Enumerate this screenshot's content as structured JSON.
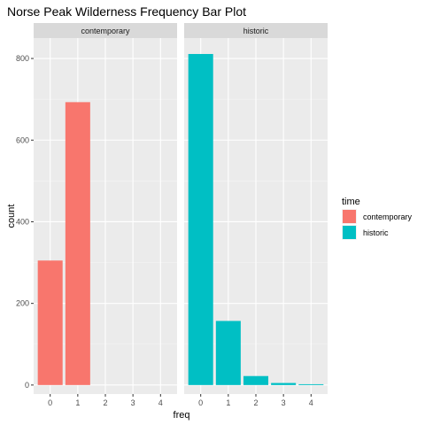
{
  "chart_data": {
    "type": "bar",
    "title": "Norse Peak Wilderness Frequency Bar Plot",
    "xlabel": "freq",
    "ylabel": "count",
    "x_ticks": [
      "0",
      "1",
      "2",
      "3",
      "4"
    ],
    "y_ticks": [
      0,
      200,
      400,
      600,
      800
    ],
    "ylim": [
      -22,
      850
    ],
    "xlim": [
      -0.6,
      4.6
    ],
    "grid": true,
    "legend_position": "right",
    "legend": {
      "title": "time",
      "entries": [
        {
          "label": "contemporary",
          "color": "#F8766D"
        },
        {
          "label": "historic",
          "color": "#00BFC4"
        }
      ]
    },
    "panels": [
      {
        "strip": "contemporary",
        "color": "#F8766D",
        "bars": [
          {
            "x": 0,
            "value": 305
          },
          {
            "x": 1,
            "value": 693
          }
        ]
      },
      {
        "strip": "historic",
        "color": "#00BFC4",
        "bars": [
          {
            "x": 0,
            "value": 811
          },
          {
            "x": 1,
            "value": 157
          },
          {
            "x": 2,
            "value": 22
          },
          {
            "x": 3,
            "value": 5
          },
          {
            "x": 4,
            "value": 2
          }
        ]
      }
    ]
  }
}
